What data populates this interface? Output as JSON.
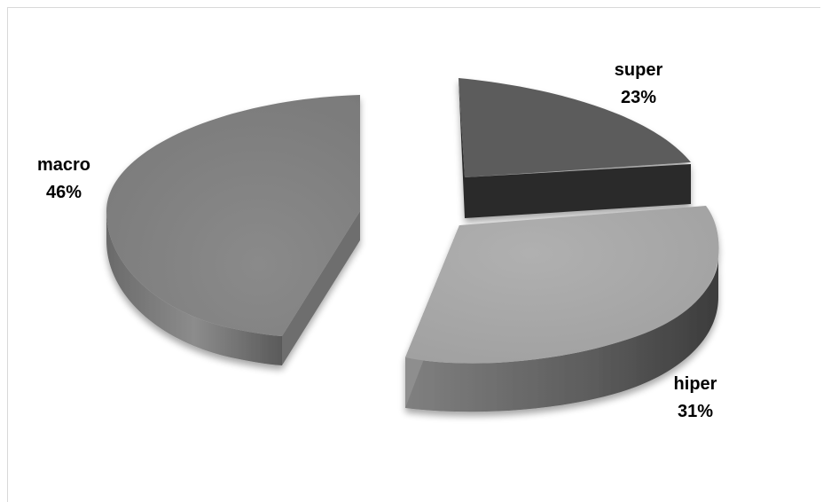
{
  "chart_data": {
    "type": "pie",
    "style": "3d-exploded",
    "legend": "none",
    "slices": [
      {
        "label": "super",
        "value": 23,
        "value_label": "23%",
        "color": "#5b5b5b",
        "side_color": "#262626"
      },
      {
        "label": "hiper",
        "value": 31,
        "value_label": "31%",
        "color": "#a6a6a6",
        "side_color": "#555555"
      },
      {
        "label": "macro",
        "value": 46,
        "value_label": "46%",
        "color": "#808080",
        "side_color": "#5e5e5e"
      }
    ]
  }
}
